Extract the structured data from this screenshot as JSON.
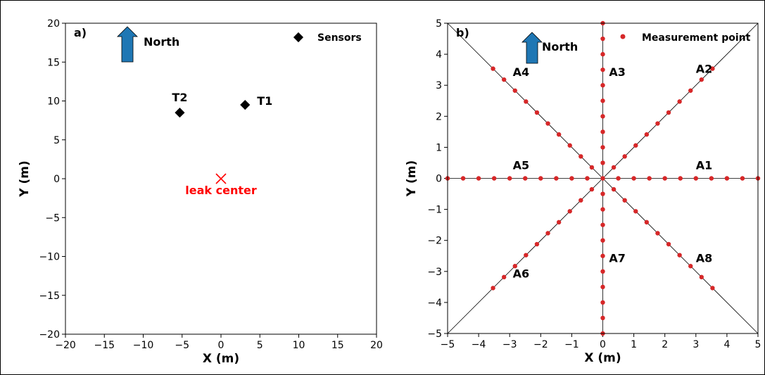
{
  "chart_data": [
    {
      "type": "scatter",
      "panel_label": "a)",
      "xlabel": "X (m)",
      "ylabel": "Y (m)",
      "xlim": [
        -20,
        20
      ],
      "ylim": [
        -20,
        20
      ],
      "xticks": [
        -20,
        -15,
        -10,
        -5,
        0,
        5,
        10,
        15,
        20
      ],
      "yticks": [
        -20,
        -15,
        -10,
        -5,
        0,
        5,
        10,
        15,
        20
      ],
      "north_label": "North",
      "legend": {
        "label": "Sensors",
        "position": "top-right"
      },
      "sensors": [
        {
          "name": "T1",
          "x": 3.1,
          "y": 9.5
        },
        {
          "name": "T2",
          "x": -5.3,
          "y": 8.5
        }
      ],
      "leak": {
        "label": "leak center",
        "x": 0,
        "y": 0
      },
      "colors": {
        "sensor": "#000000",
        "leak": "#ff0000",
        "arrow": "#1f77b4"
      }
    },
    {
      "type": "scatter",
      "panel_label": "b)",
      "xlabel": "X (m)",
      "ylabel": "Y (m)",
      "xlim": [
        -5,
        5
      ],
      "ylim": [
        -5,
        5
      ],
      "xticks": [
        -5,
        -4,
        -3,
        -2,
        -1,
        0,
        1,
        2,
        3,
        4,
        5
      ],
      "yticks": [
        -5,
        -4,
        -3,
        -2,
        -1,
        0,
        1,
        2,
        3,
        4,
        5
      ],
      "north_label": "North",
      "legend": {
        "label": "Measurement point",
        "position": "top-right"
      },
      "point_spacing": 0.5,
      "transects": [
        {
          "name": "A1",
          "angle_deg": 0
        },
        {
          "name": "A2",
          "angle_deg": 45
        },
        {
          "name": "A3",
          "angle_deg": 90
        },
        {
          "name": "A4",
          "angle_deg": 135
        },
        {
          "name": "A5",
          "angle_deg": 180
        },
        {
          "name": "A6",
          "angle_deg": 225
        },
        {
          "name": "A7",
          "angle_deg": 270
        },
        {
          "name": "A8",
          "angle_deg": 315
        }
      ],
      "transect_labels": [
        {
          "name": "A1",
          "x": 3.0,
          "y": 0.3
        },
        {
          "name": "A2",
          "x": 3.0,
          "y": 3.4
        },
        {
          "name": "A3",
          "x": 0.2,
          "y": 3.3
        },
        {
          "name": "A4",
          "x": -2.9,
          "y": 3.3
        },
        {
          "name": "A5",
          "x": -2.9,
          "y": 0.3
        },
        {
          "name": "A6",
          "x": -2.9,
          "y": -3.2
        },
        {
          "name": "A7",
          "x": 0.2,
          "y": -2.7
        },
        {
          "name": "A8",
          "x": 3.0,
          "y": -2.7
        }
      ],
      "colors": {
        "point": "#d62728",
        "line": "#000000",
        "arrow": "#1f77b4"
      }
    }
  ]
}
